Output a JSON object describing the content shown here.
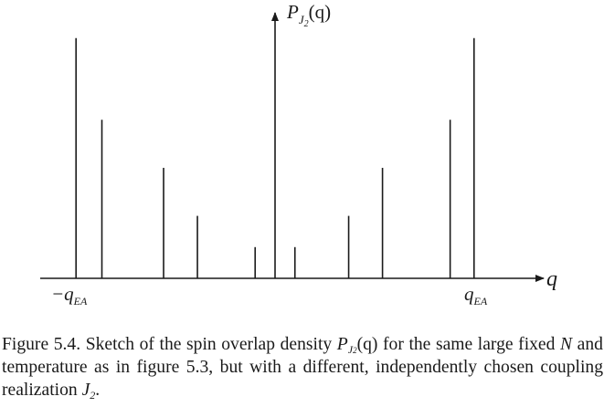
{
  "chart_data": {
    "type": "bar",
    "description_axis": {
      "y_label_main": "P",
      "y_label_sub": "J",
      "y_label_sub2": "2",
      "y_label_arg": "(q)",
      "x_label": "q",
      "left_tick_label_main": "−q",
      "left_tick_label_sub": "EA",
      "right_tick_label_main": "q",
      "right_tick_label_sub": "EA"
    },
    "x": [
      -1.0,
      -0.87,
      -0.56,
      -0.39,
      -0.1,
      0.1,
      0.37,
      0.54,
      0.88,
      1.0
    ],
    "values": [
      1.0,
      0.66,
      0.46,
      0.26,
      0.13,
      0.13,
      0.26,
      0.46,
      0.66,
      1.0
    ],
    "xlim": [
      -1.18,
      1.35
    ],
    "ylim": [
      0,
      1.06
    ],
    "grid": false
  },
  "caption": {
    "label": "Figure 5.4.",
    "text_1": "Sketch of the spin overlap density",
    "symbol_main": "P",
    "symbol_sub": "J",
    "symbol_sub2": "2",
    "symbol_arg": "(q)",
    "text_2": "for the same large fixed",
    "symbol_N": "N",
    "text_3": "and temperature as in figure 5.3, but with a different, independently chosen coupling realization",
    "symbol_J": "J",
    "symbol_J_sub": "2",
    "text_end": "."
  }
}
